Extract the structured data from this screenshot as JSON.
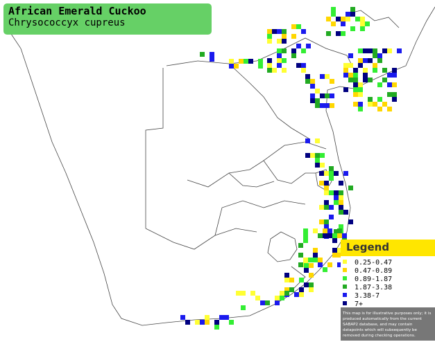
{
  "title": {
    "common_name": "African Emerald Cuckoo",
    "scientific_name": "Chrysococcyx cupreus"
  },
  "legend": {
    "heading": "Legend",
    "entries": [
      {
        "label": "0.25-0.47",
        "color": "#ffff33"
      },
      {
        "label": "0.47-0.89",
        "color": "#ffd700"
      },
      {
        "label": "0.89-1.87",
        "color": "#33ee33"
      },
      {
        "label": "1.87-3.38",
        "color": "#22aa22"
      },
      {
        "label": "3.38-7",
        "color": "#1a1aee"
      },
      {
        "label": "7+",
        "color": "#000080"
      }
    ],
    "note": "This map is for illustrative purposes only; it is produced automatically from the current SABAP2 database, and may contain datapoints which will subsequently be removed during checking operations."
  },
  "map": {
    "land_color": "#ffffff",
    "border_color": "#444444"
  }
}
